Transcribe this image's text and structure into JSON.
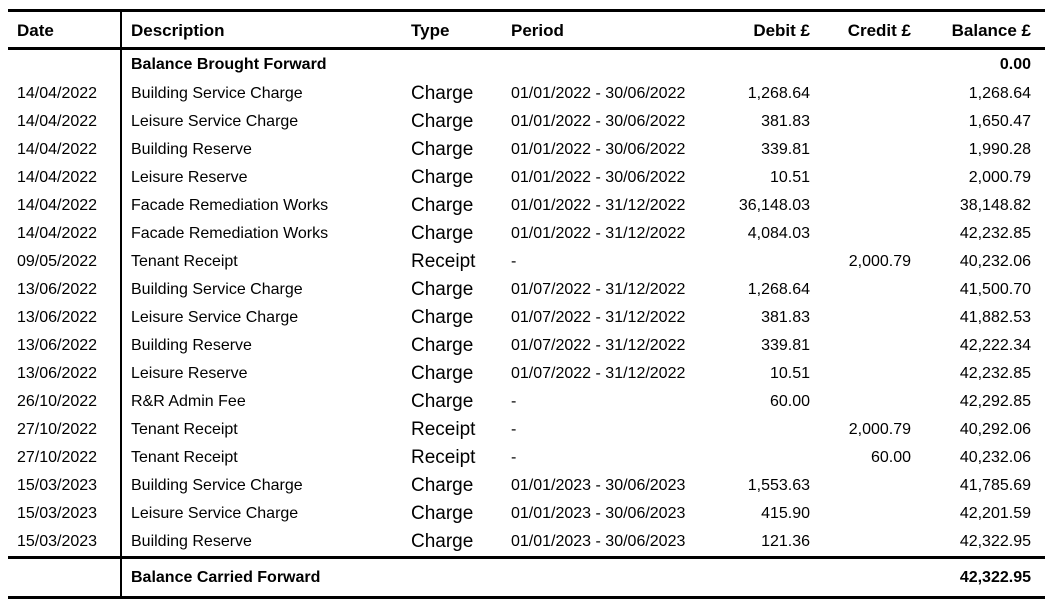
{
  "columns": {
    "date": "Date",
    "description": "Description",
    "type": "Type",
    "period": "Period",
    "debit": "Debit £",
    "credit": "Credit £",
    "balance": "Balance £"
  },
  "brought_forward": {
    "label": "Balance Brought Forward",
    "balance": "0.00"
  },
  "rows": [
    {
      "date": "14/04/2022",
      "description": "Building Service Charge",
      "type": "Charge",
      "period": "01/01/2022 - 30/06/2022",
      "debit": "1,268.64",
      "credit": "",
      "balance": "1,268.64"
    },
    {
      "date": "14/04/2022",
      "description": "Leisure Service Charge",
      "type": "Charge",
      "period": "01/01/2022 - 30/06/2022",
      "debit": "381.83",
      "credit": "",
      "balance": "1,650.47"
    },
    {
      "date": "14/04/2022",
      "description": "Building Reserve",
      "type": "Charge",
      "period": "01/01/2022 - 30/06/2022",
      "debit": "339.81",
      "credit": "",
      "balance": "1,990.28"
    },
    {
      "date": "14/04/2022",
      "description": "Leisure Reserve",
      "type": "Charge",
      "period": "01/01/2022 - 30/06/2022",
      "debit": "10.51",
      "credit": "",
      "balance": "2,000.79"
    },
    {
      "date": "14/04/2022",
      "description": "Facade Remediation Works",
      "type": "Charge",
      "period": "01/01/2022 - 31/12/2022",
      "debit": "36,148.03",
      "credit": "",
      "balance": "38,148.82"
    },
    {
      "date": "14/04/2022",
      "description": "Facade Remediation Works",
      "type": "Charge",
      "period": "01/01/2022 - 31/12/2022",
      "debit": "4,084.03",
      "credit": "",
      "balance": "42,232.85"
    },
    {
      "date": "09/05/2022",
      "description": "Tenant Receipt",
      "type": "Receipt",
      "period": "-",
      "debit": "",
      "credit": "2,000.79",
      "balance": "40,232.06"
    },
    {
      "date": "13/06/2022",
      "description": "Building Service Charge",
      "type": "Charge",
      "period": "01/07/2022 - 31/12/2022",
      "debit": "1,268.64",
      "credit": "",
      "balance": "41,500.70"
    },
    {
      "date": "13/06/2022",
      "description": "Leisure Service Charge",
      "type": "Charge",
      "period": "01/07/2022 - 31/12/2022",
      "debit": "381.83",
      "credit": "",
      "balance": "41,882.53"
    },
    {
      "date": "13/06/2022",
      "description": "Building Reserve",
      "type": "Charge",
      "period": "01/07/2022 - 31/12/2022",
      "debit": "339.81",
      "credit": "",
      "balance": "42,222.34"
    },
    {
      "date": "13/06/2022",
      "description": "Leisure Reserve",
      "type": "Charge",
      "period": "01/07/2022 - 31/12/2022",
      "debit": "10.51",
      "credit": "",
      "balance": "42,232.85"
    },
    {
      "date": "26/10/2022",
      "description": "R&R Admin Fee",
      "type": "Charge",
      "period": "-",
      "debit": "60.00",
      "credit": "",
      "balance": "42,292.85"
    },
    {
      "date": "27/10/2022",
      "description": "Tenant Receipt",
      "type": "Receipt",
      "period": "-",
      "debit": "",
      "credit": "2,000.79",
      "balance": "40,292.06"
    },
    {
      "date": "27/10/2022",
      "description": "Tenant Receipt",
      "type": "Receipt",
      "period": "-",
      "debit": "",
      "credit": "60.00",
      "balance": "40,232.06"
    },
    {
      "date": "15/03/2023",
      "description": "Building Service Charge",
      "type": "Charge",
      "period": "01/01/2023 - 30/06/2023",
      "debit": "1,553.63",
      "credit": "",
      "balance": "41,785.69"
    },
    {
      "date": "15/03/2023",
      "description": "Leisure Service Charge",
      "type": "Charge",
      "period": "01/01/2023 - 30/06/2023",
      "debit": "415.90",
      "credit": "",
      "balance": "42,201.59"
    },
    {
      "date": "15/03/2023",
      "description": "Building Reserve",
      "type": "Charge",
      "period": "01/01/2023 - 30/06/2023",
      "debit": "121.36",
      "credit": "",
      "balance": "42,322.95"
    }
  ],
  "carried_forward": {
    "label": "Balance Carried Forward",
    "balance": "42,322.95"
  }
}
